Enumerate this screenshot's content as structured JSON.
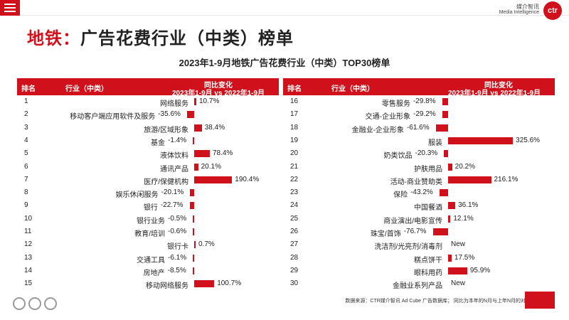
{
  "page": {
    "title_part1": "地铁：",
    "title_part2": "广告花费行业（中类）榜单",
    "logo_cn": "媒介智讯",
    "logo_en": "Media Intelligence",
    "logo_mark": "ctr",
    "source_note": "数据来源：CTR媒介智讯 Ad Cube 广告数据库； 同比为本年的N月与上年N月的对比",
    "accent_color": "#d0111b"
  },
  "table_headers": {
    "rank": "排名",
    "industry": "行业（中类）",
    "change_line1": "同比变化",
    "change_line2": "2023年1-9月 vs 2022年1-9月"
  },
  "chart_data": {
    "type": "bar",
    "title": "2023年1-9月地铁广告花费行业（中类）TOP30榜单",
    "columns": [
      {
        "ranks": [
          1,
          2,
          3,
          4,
          5,
          6,
          7,
          8,
          9,
          10,
          11,
          12,
          13,
          14,
          15
        ],
        "categories": [
          "网络服务",
          "移动客户端应用软件及服务",
          "旅游/区域形象",
          "基金",
          "液体饮料",
          "通讯产品",
          "医疗/保健机构",
          "娱乐休闲服务",
          "银行",
          "银行业务",
          "教育/培训",
          "银行卡",
          "交通工具",
          "房地产",
          "移动网络服务"
        ],
        "values": [
          10.7,
          -35.6,
          38.4,
          -1.4,
          78.4,
          20.1,
          190.4,
          -20.1,
          -22.7,
          -0.5,
          -0.6,
          0.7,
          -6.1,
          -8.5,
          100.7
        ],
        "labels": [
          "10.7%",
          "-35.6%",
          "38.4%",
          "-1.4%",
          "78.4%",
          "20.1%",
          "190.4%",
          "-20.1%",
          "-22.7%",
          "-0.5%",
          "-0.6%",
          "0.7%",
          "-6.1%",
          "-8.5%",
          "100.7%"
        ]
      },
      {
        "ranks": [
          16,
          17,
          18,
          19,
          20,
          21,
          22,
          23,
          24,
          25,
          26,
          27,
          28,
          29,
          30
        ],
        "categories": [
          "零售服务",
          "交通-企业形象",
          "金融业-企业形象",
          "服装",
          "奶类饮品",
          "护肤用品",
          "活动-商业赞助类",
          "保险",
          "中国餐酒",
          "商业演出/电影宣传",
          "珠宝/首饰",
          "洗洁剂/光亮剂/消毒剂",
          "糕点饼干",
          "眼科用药",
          "金融业系列产品"
        ],
        "values": [
          -29.8,
          -29.2,
          -61.6,
          325.6,
          -20.3,
          20.2,
          216.1,
          -43.2,
          36.1,
          12.1,
          -76.7,
          null,
          17.5,
          95.9,
          null
        ],
        "labels": [
          "-29.8%",
          "-29.2%",
          "-61.6%",
          "325.6%",
          "-20.3%",
          "20.2%",
          "216.1%",
          "-43.2%",
          "36.1%",
          "12.1%",
          "-76.7%",
          "New",
          "17.5%",
          "95.9%",
          "New"
        ]
      }
    ]
  }
}
